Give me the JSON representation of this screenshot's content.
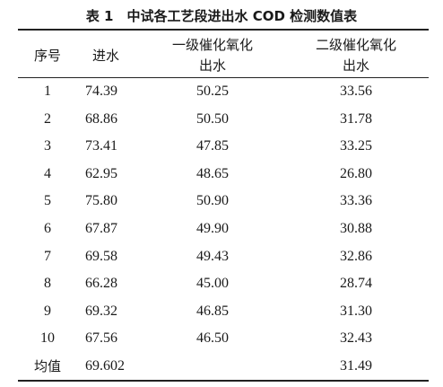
{
  "title": "表 1　中试各工艺段进出水 COD 检测数值表",
  "table": {
    "headers": [
      [
        "序号"
      ],
      [
        "进水"
      ],
      [
        "一级催化氧化",
        "出水"
      ],
      [
        "二级催化氧化",
        "出水"
      ]
    ],
    "rows": [
      [
        "1",
        "74.39",
        "50.25",
        "33.56"
      ],
      [
        "2",
        "68.86",
        "50.50",
        "31.78"
      ],
      [
        "3",
        "73.41",
        "47.85",
        "33.25"
      ],
      [
        "4",
        "62.95",
        "48.65",
        "26.80"
      ],
      [
        "5",
        "75.80",
        "50.90",
        "33.36"
      ],
      [
        "6",
        "67.87",
        "49.90",
        "30.88"
      ],
      [
        "7",
        "69.58",
        "49.43",
        "32.86"
      ],
      [
        "8",
        "66.28",
        "45.00",
        "28.74"
      ],
      [
        "9",
        "69.32",
        "46.85",
        "31.30"
      ],
      [
        "10",
        "67.56",
        "46.50",
        "32.43"
      ],
      [
        "均值",
        "69.602",
        null,
        "31.49"
      ]
    ]
  }
}
